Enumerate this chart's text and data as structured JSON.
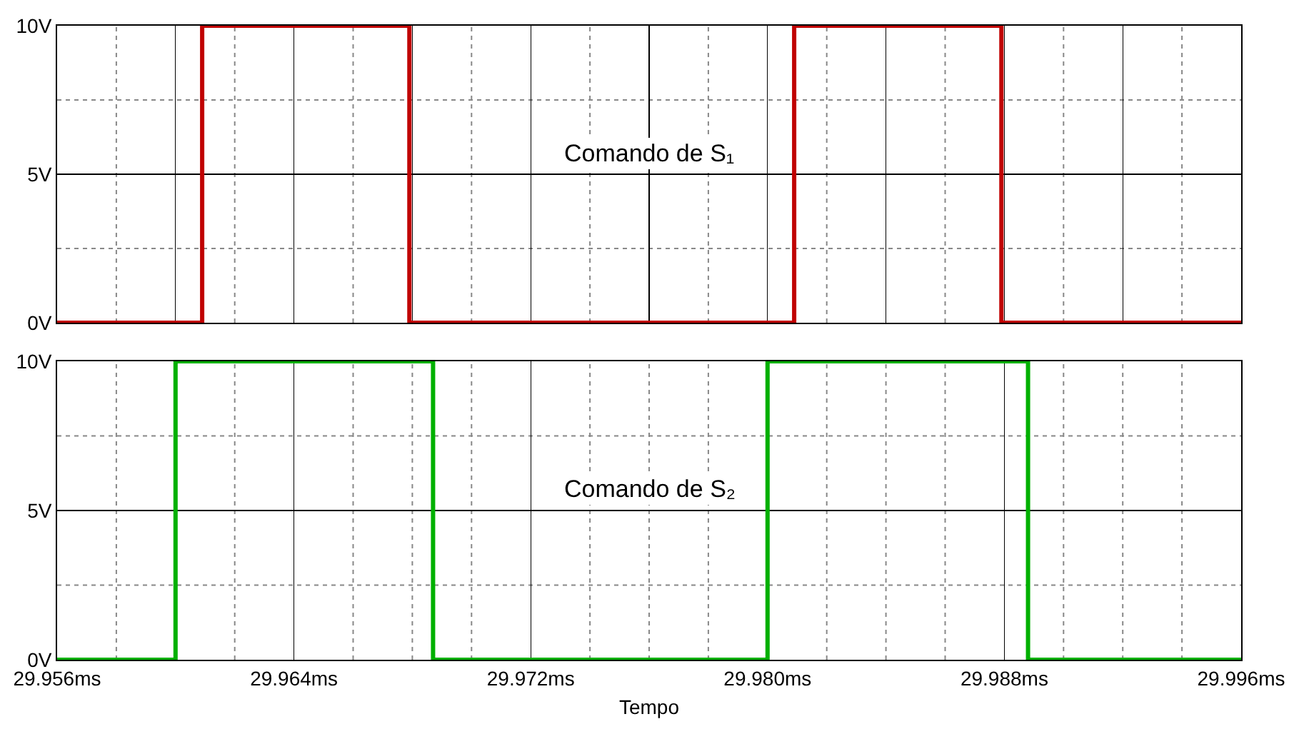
{
  "chart_data": [
    {
      "type": "step",
      "annotations": [
        "Comando de S₁"
      ],
      "x": [
        29.956,
        29.9609,
        29.9679,
        29.9809,
        29.9879,
        29.996
      ],
      "series": [
        {
          "color": "#c00000",
          "values": [
            0,
            10,
            0,
            10,
            0,
            0
          ]
        }
      ],
      "xlim": [
        29.956,
        29.996
      ],
      "xticks": [
        29.956,
        {
          "value": 29.958,
          "label": null
        },
        29.96,
        {
          "value": 29.962,
          "label": null
        },
        29.964,
        {
          "value": 29.966,
          "label": null
        },
        29.968,
        {
          "value": 29.97,
          "label": null
        },
        29.972,
        {
          "value": 29.974,
          "label": null
        },
        29.976,
        {
          "value": 29.978,
          "label": null
        },
        29.98,
        {
          "value": 29.982,
          "label": null
        },
        29.984,
        {
          "value": 29.986,
          "label": null
        },
        29.988,
        {
          "value": 29.99,
          "label": null
        },
        29.992,
        {
          "value": 29.994,
          "label": null
        },
        29.996
      ],
      "ylim": [
        0,
        10
      ],
      "yticks": [
        {
          "value": 0,
          "label": "0V"
        },
        {
          "value": 2.5,
          "label": null
        },
        {
          "value": 5,
          "label": "5V"
        },
        {
          "value": 7.5,
          "label": null
        },
        {
          "value": 10,
          "label": "10V"
        }
      ],
      "grid": true,
      "tick_labels": "y"
    },
    {
      "type": "step",
      "annotations": [
        "Comando de S₂"
      ],
      "xlabel": "Tempo",
      "x": [
        29.956,
        29.96,
        29.9687,
        29.98,
        29.9888,
        29.996
      ],
      "series": [
        {
          "color": "#00b000",
          "values": [
            0,
            10,
            0,
            10,
            0,
            0
          ]
        }
      ],
      "xlim": [
        29.956,
        29.996
      ],
      "xticks": [
        {
          "value": 29.956,
          "label": "29.956ms"
        },
        {
          "value": 29.958,
          "label": null
        },
        {
          "value": 29.96,
          "label": null
        },
        {
          "value": 29.962,
          "label": null
        },
        {
          "value": 29.964,
          "label": "29.964ms"
        },
        {
          "value": 29.966,
          "label": null
        },
        {
          "value": 29.968,
          "label": null
        },
        {
          "value": 29.97,
          "label": null
        },
        {
          "value": 29.972,
          "label": "29.972ms"
        },
        {
          "value": 29.974,
          "label": null
        },
        {
          "value": 29.976,
          "label": null
        },
        {
          "value": 29.978,
          "label": null
        },
        {
          "value": 29.98,
          "label": "29.980ms"
        },
        {
          "value": 29.982,
          "label": null
        },
        {
          "value": 29.984,
          "label": null
        },
        {
          "value": 29.986,
          "label": null
        },
        {
          "value": 29.988,
          "label": "29.988ms"
        },
        {
          "value": 29.99,
          "label": null
        },
        {
          "value": 29.992,
          "label": null
        },
        {
          "value": 29.994,
          "label": null
        },
        {
          "value": 29.996,
          "label": "29.996ms"
        }
      ],
      "ylim": [
        0,
        10
      ],
      "yticks": [
        {
          "value": 0,
          "label": "0V"
        },
        {
          "value": 2.5,
          "label": null
        },
        {
          "value": 5,
          "label": "5V"
        },
        {
          "value": 7.5,
          "label": null
        },
        {
          "value": 10,
          "label": "10V"
        }
      ],
      "grid": true
    }
  ]
}
